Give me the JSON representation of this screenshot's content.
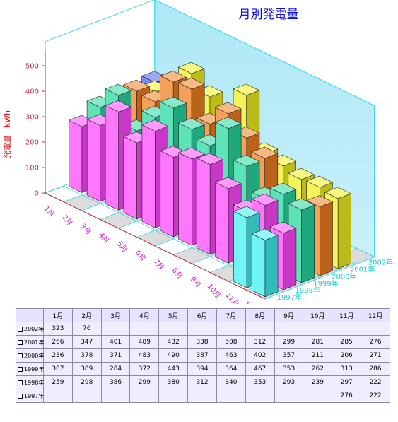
{
  "chart_data": {
    "type": "bar",
    "title": "月別発電量",
    "ylabel": "発電量　kWh",
    "ylim": [
      0,
      500
    ],
    "yticks": [
      "0",
      "100",
      "200",
      "300",
      "400",
      "500"
    ],
    "categories": [
      "1月",
      "2月",
      "3月",
      "4月",
      "5月",
      "6月",
      "7月",
      "8月",
      "9月",
      "10月",
      "11月",
      "12月"
    ],
    "series": [
      {
        "name": "1997年",
        "color": "#40f0f0",
        "values": [
          null,
          null,
          null,
          null,
          null,
          null,
          null,
          null,
          null,
          null,
          276,
          222
        ]
      },
      {
        "name": "1998年",
        "color": "#ff48ff",
        "values": [
          259,
          298,
          386,
          299,
          380,
          312,
          340,
          353,
          293,
          239,
          297,
          222
        ]
      },
      {
        "name": "1999年",
        "color": "#28d8a0",
        "values": [
          307,
          389,
          284,
          372,
          443,
          394,
          364,
          467,
          353,
          262,
          313,
          286
        ]
      },
      {
        "name": "2000年",
        "color": "#f08020",
        "values": [
          236,
          378,
          371,
          483,
          490,
          387,
          463,
          402,
          357,
          211,
          206,
          271
        ]
      },
      {
        "name": "2001年",
        "color": "#f0f020",
        "values": [
          266,
          347,
          401,
          489,
          432,
          338,
          508,
          312,
          299,
          281,
          285,
          276
        ]
      },
      {
        "name": "2002年",
        "color": "#5060f0",
        "values": [
          323,
          76,
          null,
          null,
          null,
          null,
          null,
          null,
          null,
          null,
          null,
          null
        ]
      }
    ],
    "table": {
      "header": [
        "1月",
        "2月",
        "3月",
        "4月",
        "5月",
        "6月",
        "7月",
        "8月",
        "9月",
        "10月",
        "11月",
        "12月"
      ],
      "rows": [
        {
          "label": "2002年",
          "cells": [
            "323",
            "76",
            "",
            "",
            "",
            "",
            "",
            "",
            "",
            "",
            "",
            ""
          ]
        },
        {
          "label": "2001年",
          "cells": [
            "266",
            "347",
            "401",
            "489",
            "432",
            "338",
            "508",
            "312",
            "299",
            "281",
            "285",
            "276"
          ]
        },
        {
          "label": "2000年",
          "cells": [
            "236",
            "378",
            "371",
            "483",
            "490",
            "387",
            "463",
            "402",
            "357",
            "211",
            "206",
            "271"
          ]
        },
        {
          "label": "1999年",
          "cells": [
            "307",
            "389",
            "284",
            "372",
            "443",
            "394",
            "364",
            "467",
            "353",
            "262",
            "313",
            "286"
          ]
        },
        {
          "label": "1998年",
          "cells": [
            "259",
            "298",
            "386",
            "299",
            "380",
            "312",
            "340",
            "353",
            "293",
            "239",
            "297",
            "222"
          ]
        },
        {
          "label": "1997年",
          "cells": [
            "",
            "",
            "",
            "",
            "",
            "",
            "",
            "",
            "",
            "",
            "276",
            "222"
          ]
        }
      ]
    }
  }
}
